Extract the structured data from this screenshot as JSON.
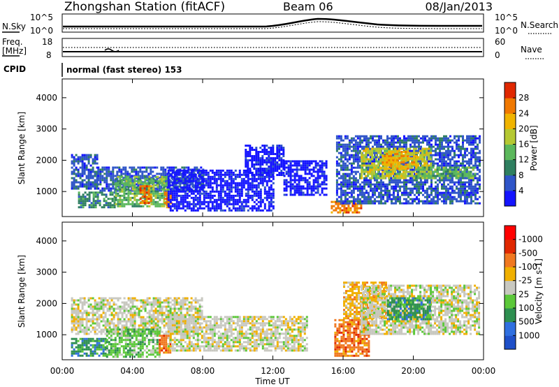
{
  "header": {
    "title": "Zhongshan Station (fitACF)",
    "beam": "Beam 06",
    "date": "08/Jan/2013"
  },
  "noise_panel": {
    "left_label": "N.Sky",
    "right_label": "N.Search",
    "tick_top": "10^5",
    "tick_bottom": "10^0"
  },
  "freq_panel": {
    "left_label_1": "Freq.",
    "left_label_2": "[MHz]",
    "right_label": "Nave",
    "left_ticks": [
      "18",
      "8"
    ],
    "right_ticks": [
      "60",
      "0"
    ]
  },
  "cpid": {
    "label": "CPID",
    "program": "normal (fast stereo) 153"
  },
  "chart_data": [
    {
      "type": "heatmap",
      "title": "",
      "ylabel": "Slant Range [km]",
      "xlabel": "",
      "ylim": [
        200,
        4600
      ],
      "yticks": [
        1000,
        2000,
        3000,
        4000
      ],
      "colorbar": {
        "label": "Power [dB]",
        "ticks": [
          "4",
          "8",
          "12",
          "16",
          "20",
          "24",
          "28"
        ],
        "colors": [
          "#1414ff",
          "#2f55c8",
          "#2f7f60",
          "#5cb85c",
          "#b5c832",
          "#f0b400",
          "#f07800",
          "#e02800"
        ]
      },
      "regions": [
        {
          "t0": 0.5,
          "t1": 2.0,
          "r0": 1100,
          "r1": 2200,
          "level": 1
        },
        {
          "t0": 0.9,
          "t1": 3.0,
          "r0": 500,
          "r1": 1000,
          "level": 2
        },
        {
          "t0": 2.0,
          "t1": 8.0,
          "r0": 1000,
          "r1": 1800,
          "level": 1
        },
        {
          "t0": 3.0,
          "t1": 6.0,
          "r0": 500,
          "r1": 1500,
          "level": 3
        },
        {
          "t0": 4.4,
          "t1": 5.0,
          "r0": 600,
          "r1": 1200,
          "level": 6
        },
        {
          "t0": 5.8,
          "t1": 6.2,
          "r0": 500,
          "r1": 1000,
          "level": 6
        },
        {
          "t0": 6.0,
          "t1": 12.0,
          "r0": 400,
          "r1": 1700,
          "level": 0
        },
        {
          "t0": 10.4,
          "t1": 12.6,
          "r0": 1500,
          "r1": 2500,
          "level": 0
        },
        {
          "t0": 12.6,
          "t1": 15.0,
          "r0": 900,
          "r1": 2000,
          "level": 0
        },
        {
          "t0": 15.3,
          "t1": 17.0,
          "r0": 300,
          "r1": 700,
          "level": 6
        },
        {
          "t0": 15.6,
          "t1": 23.8,
          "r0": 600,
          "r1": 2800,
          "level": 1
        },
        {
          "t0": 17.0,
          "t1": 21.0,
          "r0": 1400,
          "r1": 2400,
          "level": 4
        },
        {
          "t0": 18.2,
          "t1": 20.2,
          "r0": 1700,
          "r1": 2300,
          "level": 5
        },
        {
          "t0": 20.0,
          "t1": 23.5,
          "r0": 1400,
          "r1": 1800,
          "level": 3
        }
      ]
    },
    {
      "type": "heatmap",
      "title": "",
      "ylabel": "Slant Range [km]",
      "xlabel": "Time UT",
      "ylim": [
        200,
        4600
      ],
      "yticks": [
        1000,
        2000,
        3000,
        4000
      ],
      "xticks": [
        "00:00",
        "04:00",
        "08:00",
        "12:00",
        "16:00",
        "20:00",
        "00:00"
      ],
      "colorbar": {
        "label": "Velocity [m s-1]",
        "ticks": [
          "1000",
          "500",
          "100",
          "25",
          "-25",
          "-100",
          "-500",
          "-1000"
        ],
        "colors": [
          "#1e4fc8",
          "#2f6fe0",
          "#2e8f50",
          "#5cc83a",
          "#c8c8c0",
          "#f0b000",
          "#f07820",
          "#e02800",
          "#ff0000"
        ]
      },
      "regions": [
        {
          "t0": 0.5,
          "t1": 8.0,
          "r0": 1000,
          "r1": 2200,
          "level": 4
        },
        {
          "t0": 0.5,
          "t1": 2.5,
          "r0": 300,
          "r1": 900,
          "level": 2
        },
        {
          "t0": 2.5,
          "t1": 5.5,
          "r0": 300,
          "r1": 1200,
          "level": 3
        },
        {
          "t0": 5.5,
          "t1": 6.2,
          "r0": 400,
          "r1": 1000,
          "level": 6
        },
        {
          "t0": 6.0,
          "t1": 14.0,
          "r0": 500,
          "r1": 1600,
          "level": 4
        },
        {
          "t0": 15.5,
          "t1": 17.5,
          "r0": 300,
          "r1": 1500,
          "level": 6
        },
        {
          "t0": 16.0,
          "t1": 18.5,
          "r0": 1500,
          "r1": 2700,
          "level": 5
        },
        {
          "t0": 17.0,
          "t1": 23.8,
          "r0": 1000,
          "r1": 2600,
          "level": 4
        },
        {
          "t0": 18.5,
          "t1": 21.0,
          "r0": 1500,
          "r1": 2200,
          "level": 2
        }
      ]
    }
  ]
}
